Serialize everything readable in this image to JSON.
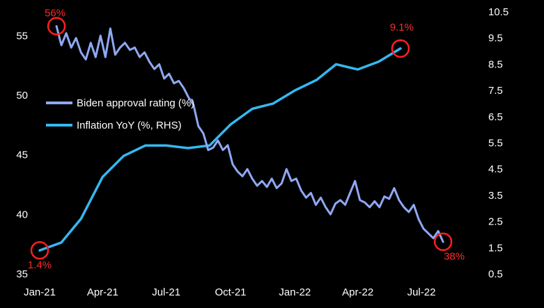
{
  "chart_data": {
    "type": "line",
    "title": "",
    "x_tick_labels": [
      "Jan-21",
      "Apr-21",
      "Jul-21",
      "Oct-21",
      "Jan-22",
      "Apr-22",
      "Jul-22"
    ],
    "y_left": {
      "range": [
        35,
        57
      ],
      "ticks": [
        "35",
        "40",
        "45",
        "50",
        "55"
      ]
    },
    "y_right": {
      "range": [
        0.5,
        10.5
      ],
      "ticks": [
        "0.5",
        "1.5",
        "2.5",
        "3.5",
        "4.5",
        "5.5",
        "6.5",
        "7.5",
        "8.5",
        "9.5",
        "10.5"
      ]
    },
    "legend": {
      "position": "left-center",
      "entries": [
        "Biden approval rating (%)",
        "Inflation YoY (%, RHS)"
      ]
    },
    "grid": false,
    "series": [
      {
        "name": "Biden approval rating (%)",
        "axis": "left",
        "color": "#8fa8f3",
        "x": [
          "2021-01-25",
          "2021-02-01",
          "2021-02-08",
          "2021-02-15",
          "2021-02-22",
          "2021-03-01",
          "2021-03-08",
          "2021-03-15",
          "2021-03-22",
          "2021-03-29",
          "2021-04-05",
          "2021-04-12",
          "2021-04-19",
          "2021-04-26",
          "2021-05-03",
          "2021-05-10",
          "2021-05-17",
          "2021-05-24",
          "2021-05-31",
          "2021-06-07",
          "2021-06-14",
          "2021-06-21",
          "2021-06-28",
          "2021-07-05",
          "2021-07-12",
          "2021-07-19",
          "2021-07-26",
          "2021-08-02",
          "2021-08-09",
          "2021-08-16",
          "2021-08-23",
          "2021-08-30",
          "2021-09-06",
          "2021-09-13",
          "2021-09-20",
          "2021-09-27",
          "2021-10-04",
          "2021-10-11",
          "2021-10-18",
          "2021-10-25",
          "2021-11-01",
          "2021-11-08",
          "2021-11-15",
          "2021-11-22",
          "2021-11-29",
          "2021-12-06",
          "2021-12-13",
          "2021-12-20",
          "2021-12-27",
          "2022-01-03",
          "2022-01-10",
          "2022-01-17",
          "2022-01-24",
          "2022-01-31",
          "2022-02-07",
          "2022-02-14",
          "2022-02-21",
          "2022-02-28",
          "2022-03-07",
          "2022-03-14",
          "2022-03-21",
          "2022-03-28",
          "2022-04-04",
          "2022-04-11",
          "2022-04-18",
          "2022-04-25",
          "2022-05-02",
          "2022-05-09",
          "2022-05-16",
          "2022-05-23",
          "2022-05-30",
          "2022-06-06",
          "2022-06-13",
          "2022-06-20",
          "2022-06-27",
          "2022-07-04",
          "2022-07-11",
          "2022-07-18",
          "2022-07-25",
          "2022-08-01"
        ],
        "values": [
          55.8,
          54.2,
          55.2,
          54.0,
          54.8,
          53.6,
          53.0,
          54.4,
          53.2,
          55.0,
          53.2,
          55.6,
          53.4,
          54.0,
          54.4,
          53.8,
          54.0,
          53.2,
          53.6,
          52.8,
          52.2,
          52.6,
          51.4,
          51.8,
          51.0,
          51.2,
          50.6,
          49.8,
          49.2,
          47.4,
          46.8,
          45.4,
          45.6,
          46.2,
          45.4,
          45.8,
          44.2,
          43.6,
          43.2,
          43.8,
          43.0,
          42.4,
          42.8,
          42.3,
          43.0,
          42.2,
          42.6,
          43.8,
          42.8,
          43.0,
          42.0,
          41.4,
          41.8,
          40.8,
          41.4,
          40.6,
          40.0,
          40.9,
          41.2,
          40.8,
          41.8,
          42.8,
          41.2,
          41.0,
          40.6,
          41.1,
          40.6,
          41.5,
          41.3,
          42.2,
          41.2,
          40.6,
          40.2,
          40.8,
          39.6,
          38.8,
          38.4,
          38.0,
          38.6,
          37.7
        ]
      },
      {
        "name": "Inflation YoY (%, RHS)",
        "axis": "right",
        "color": "#35b8f0",
        "x": [
          "2021-01-01",
          "2021-02-01",
          "2021-03-01",
          "2021-04-01",
          "2021-05-01",
          "2021-06-01",
          "2021-07-01",
          "2021-08-01",
          "2021-09-01",
          "2021-10-01",
          "2021-11-01",
          "2021-12-01",
          "2022-01-01",
          "2022-02-01",
          "2022-03-01",
          "2022-04-01",
          "2022-05-01",
          "2022-06-01"
        ],
        "values": [
          1.4,
          1.7,
          2.6,
          4.2,
          5.0,
          5.4,
          5.4,
          5.3,
          5.4,
          6.2,
          6.8,
          7.0,
          7.5,
          7.9,
          8.5,
          8.3,
          8.6,
          9.1
        ]
      }
    ],
    "annotations": [
      {
        "text": "56%",
        "series": "Biden approval rating (%)",
        "x": "2021-01-25",
        "y": 55.8
      },
      {
        "text": "1.4%",
        "series": "Inflation YoY (%, RHS)",
        "x": "2021-01-01",
        "y": 1.4
      },
      {
        "text": "9.1%",
        "series": "Inflation YoY (%, RHS)",
        "x": "2022-06-01",
        "y": 9.1
      },
      {
        "text": "38%",
        "series": "Biden approval rating (%)",
        "x": "2022-08-01",
        "y": 37.7
      }
    ]
  }
}
